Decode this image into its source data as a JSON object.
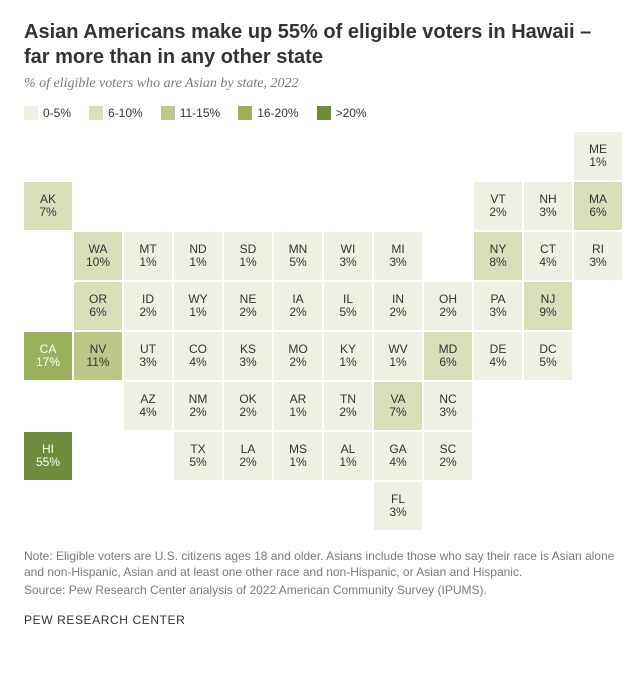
{
  "title": "Asian Americans make up 55% of eligible voters in Hawaii – far more than in any other state",
  "subtitle": "% of eligible voters who are Asian by state, 2022",
  "legend": {
    "buckets": [
      {
        "label": "0-5%",
        "color": "#eef0e3"
      },
      {
        "label": "6-10%",
        "color": "#d9dfb9"
      },
      {
        "label": "11-15%",
        "color": "#bcc887"
      },
      {
        "label": "16-20%",
        "color": "#9ab05a"
      },
      {
        "label": ">20%",
        "color": "#6f8b3c"
      }
    ]
  },
  "colors": {
    "text_dark": "#333333",
    "text_light": "#ffffff"
  },
  "cells": [
    {
      "abbr": "ME",
      "pct": "1%",
      "col": 12,
      "row": 1,
      "bucket": 0
    },
    {
      "abbr": "AK",
      "pct": "7%",
      "col": 1,
      "row": 2,
      "bucket": 1
    },
    {
      "abbr": "VT",
      "pct": "2%",
      "col": 10,
      "row": 2,
      "bucket": 0
    },
    {
      "abbr": "NH",
      "pct": "3%",
      "col": 11,
      "row": 2,
      "bucket": 0
    },
    {
      "abbr": "MA",
      "pct": "6%",
      "col": 12,
      "row": 2,
      "bucket": 1
    },
    {
      "abbr": "WA",
      "pct": "10%",
      "col": 2,
      "row": 3,
      "bucket": 1
    },
    {
      "abbr": "MT",
      "pct": "1%",
      "col": 3,
      "row": 3,
      "bucket": 0
    },
    {
      "abbr": "ND",
      "pct": "1%",
      "col": 4,
      "row": 3,
      "bucket": 0
    },
    {
      "abbr": "SD",
      "pct": "1%",
      "col": 5,
      "row": 3,
      "bucket": 0
    },
    {
      "abbr": "MN",
      "pct": "5%",
      "col": 6,
      "row": 3,
      "bucket": 0
    },
    {
      "abbr": "WI",
      "pct": "3%",
      "col": 7,
      "row": 3,
      "bucket": 0
    },
    {
      "abbr": "MI",
      "pct": "3%",
      "col": 8,
      "row": 3,
      "bucket": 0
    },
    {
      "abbr": "NY",
      "pct": "8%",
      "col": 10,
      "row": 3,
      "bucket": 1
    },
    {
      "abbr": "CT",
      "pct": "4%",
      "col": 11,
      "row": 3,
      "bucket": 0
    },
    {
      "abbr": "RI",
      "pct": "3%",
      "col": 12,
      "row": 3,
      "bucket": 0
    },
    {
      "abbr": "OR",
      "pct": "6%",
      "col": 2,
      "row": 4,
      "bucket": 1
    },
    {
      "abbr": "ID",
      "pct": "2%",
      "col": 3,
      "row": 4,
      "bucket": 0
    },
    {
      "abbr": "WY",
      "pct": "1%",
      "col": 4,
      "row": 4,
      "bucket": 0
    },
    {
      "abbr": "NE",
      "pct": "2%",
      "col": 5,
      "row": 4,
      "bucket": 0
    },
    {
      "abbr": "IA",
      "pct": "2%",
      "col": 6,
      "row": 4,
      "bucket": 0
    },
    {
      "abbr": "IL",
      "pct": "5%",
      "col": 7,
      "row": 4,
      "bucket": 0
    },
    {
      "abbr": "IN",
      "pct": "2%",
      "col": 8,
      "row": 4,
      "bucket": 0
    },
    {
      "abbr": "OH",
      "pct": "2%",
      "col": 9,
      "row": 4,
      "bucket": 0
    },
    {
      "abbr": "PA",
      "pct": "3%",
      "col": 10,
      "row": 4,
      "bucket": 0
    },
    {
      "abbr": "NJ",
      "pct": "9%",
      "col": 11,
      "row": 4,
      "bucket": 1
    },
    {
      "abbr": "CA",
      "pct": "17%",
      "col": 1,
      "row": 5,
      "bucket": 3,
      "light": true
    },
    {
      "abbr": "NV",
      "pct": "11%",
      "col": 2,
      "row": 5,
      "bucket": 2
    },
    {
      "abbr": "UT",
      "pct": "3%",
      "col": 3,
      "row": 5,
      "bucket": 0
    },
    {
      "abbr": "CO",
      "pct": "4%",
      "col": 4,
      "row": 5,
      "bucket": 0
    },
    {
      "abbr": "KS",
      "pct": "3%",
      "col": 5,
      "row": 5,
      "bucket": 0
    },
    {
      "abbr": "MO",
      "pct": "2%",
      "col": 6,
      "row": 5,
      "bucket": 0
    },
    {
      "abbr": "KY",
      "pct": "1%",
      "col": 7,
      "row": 5,
      "bucket": 0
    },
    {
      "abbr": "WV",
      "pct": "1%",
      "col": 8,
      "row": 5,
      "bucket": 0
    },
    {
      "abbr": "MD",
      "pct": "6%",
      "col": 9,
      "row": 5,
      "bucket": 1
    },
    {
      "abbr": "DE",
      "pct": "4%",
      "col": 10,
      "row": 5,
      "bucket": 0
    },
    {
      "abbr": "DC",
      "pct": "5%",
      "col": 11,
      "row": 5,
      "bucket": 0
    },
    {
      "abbr": "AZ",
      "pct": "4%",
      "col": 3,
      "row": 6,
      "bucket": 0
    },
    {
      "abbr": "NM",
      "pct": "2%",
      "col": 4,
      "row": 6,
      "bucket": 0
    },
    {
      "abbr": "OK",
      "pct": "2%",
      "col": 5,
      "row": 6,
      "bucket": 0
    },
    {
      "abbr": "AR",
      "pct": "1%",
      "col": 6,
      "row": 6,
      "bucket": 0
    },
    {
      "abbr": "TN",
      "pct": "2%",
      "col": 7,
      "row": 6,
      "bucket": 0
    },
    {
      "abbr": "VA",
      "pct": "7%",
      "col": 8,
      "row": 6,
      "bucket": 1
    },
    {
      "abbr": "NC",
      "pct": "3%",
      "col": 9,
      "row": 6,
      "bucket": 0
    },
    {
      "abbr": "HI",
      "pct": "55%",
      "col": 1,
      "row": 7,
      "bucket": 4,
      "light": true
    },
    {
      "abbr": "TX",
      "pct": "5%",
      "col": 4,
      "row": 7,
      "bucket": 0
    },
    {
      "abbr": "LA",
      "pct": "2%",
      "col": 5,
      "row": 7,
      "bucket": 0
    },
    {
      "abbr": "MS",
      "pct": "1%",
      "col": 6,
      "row": 7,
      "bucket": 0
    },
    {
      "abbr": "AL",
      "pct": "1%",
      "col": 7,
      "row": 7,
      "bucket": 0
    },
    {
      "abbr": "GA",
      "pct": "4%",
      "col": 8,
      "row": 7,
      "bucket": 0
    },
    {
      "abbr": "SC",
      "pct": "2%",
      "col": 9,
      "row": 7,
      "bucket": 0
    },
    {
      "abbr": "FL",
      "pct": "3%",
      "col": 8,
      "row": 8,
      "bucket": 0
    }
  ],
  "note": "Note: Eligible voters are U.S. citizens ages 18 and older. Asians include those who say their race is Asian alone and non-Hispanic, Asian and at least one other race and non-Hispanic, or Asian and Hispanic.",
  "source": "Source: Pew Research Center analysis of 2022 American Community Survey (IPUMS).",
  "footer": "PEW RESEARCH CENTER"
}
